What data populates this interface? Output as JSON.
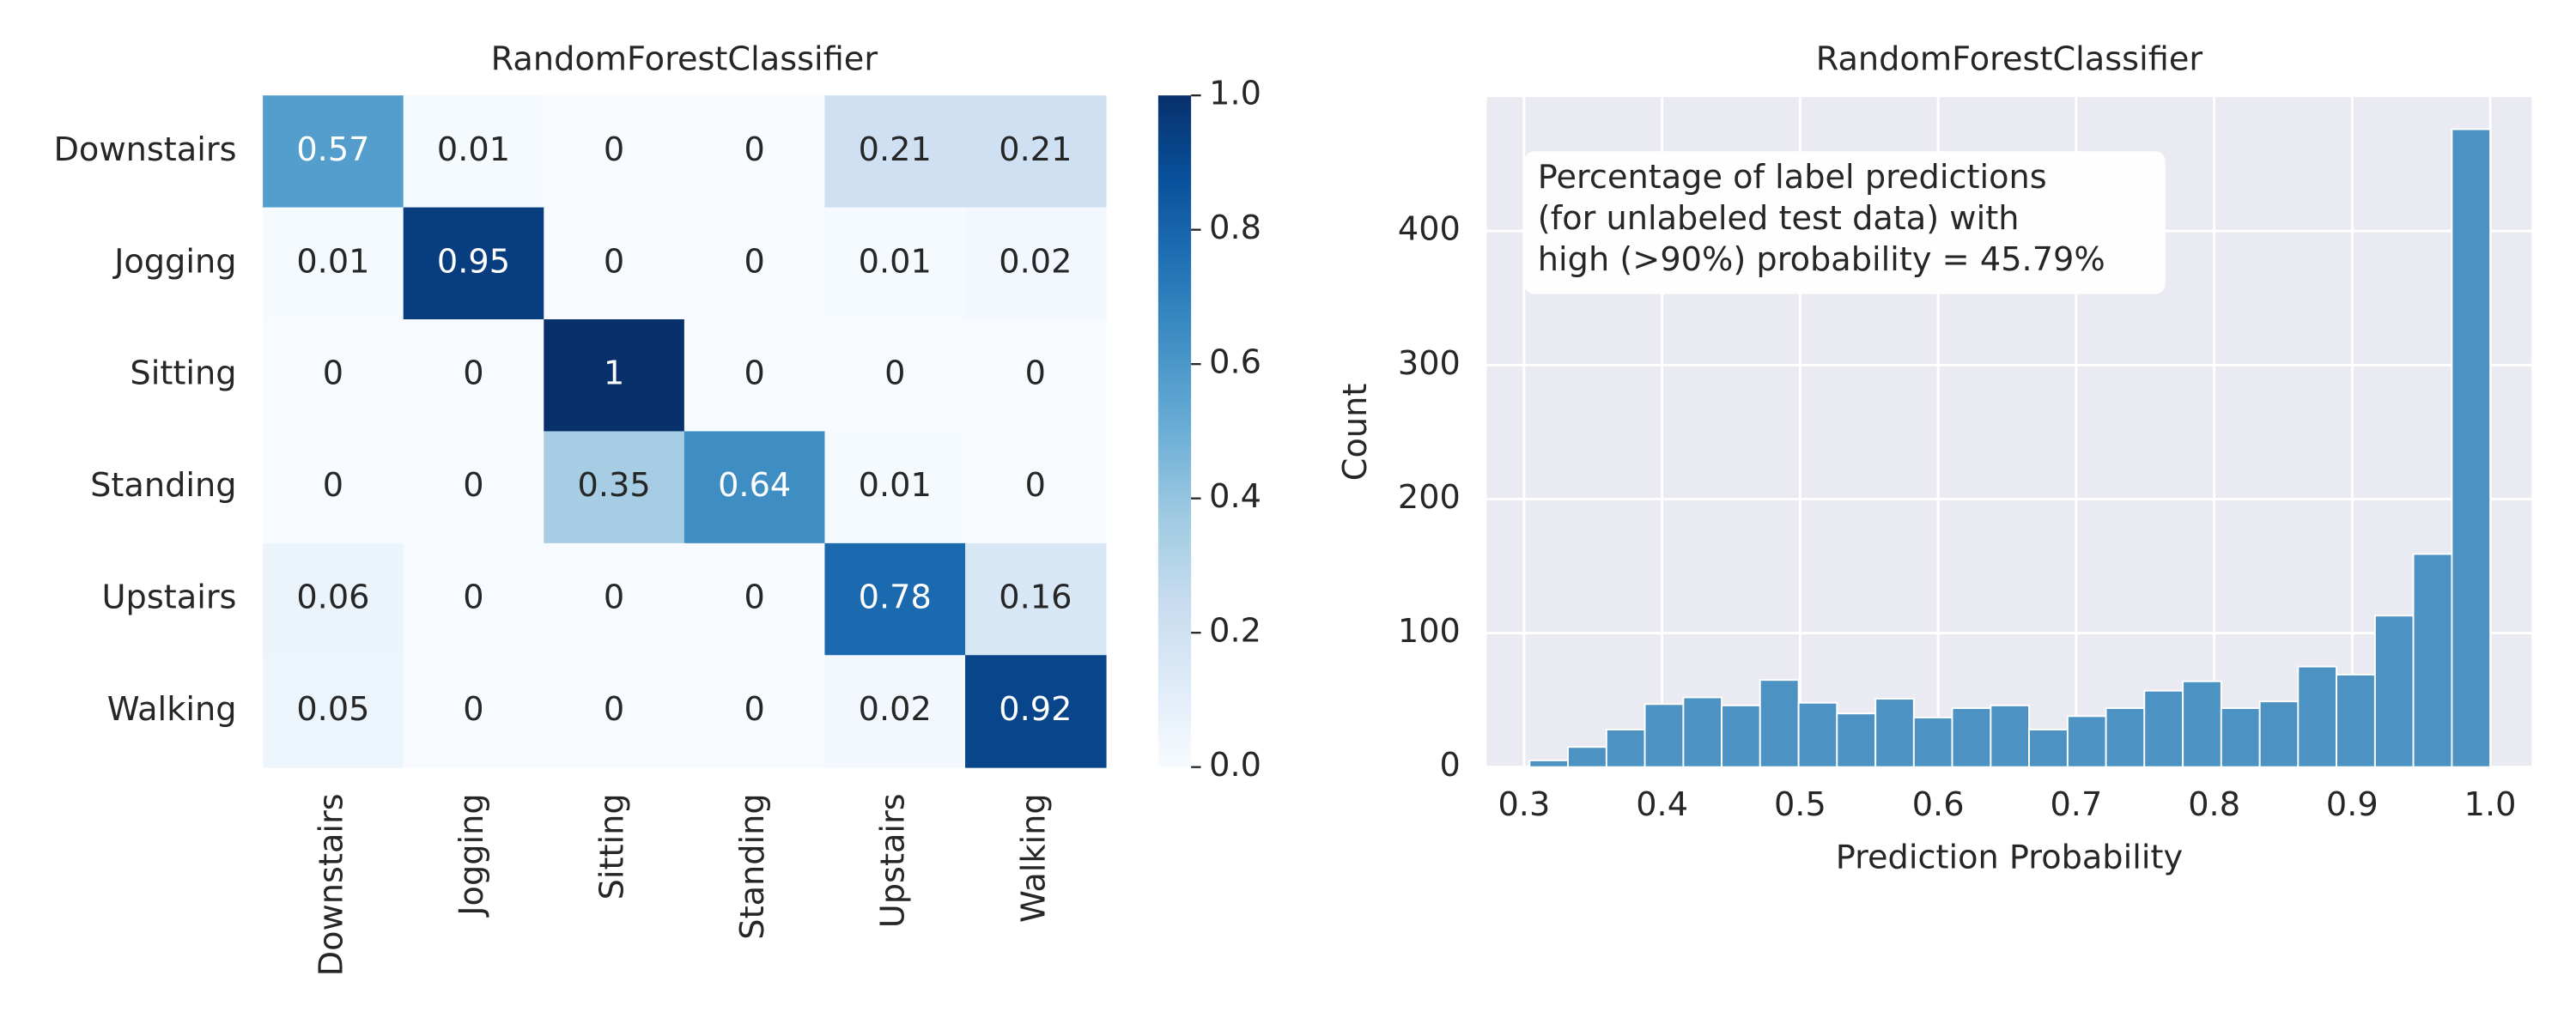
{
  "chart_data": [
    {
      "type": "heatmap",
      "title": "RandomForestClassifier",
      "y_categories": [
        "Downstairs",
        "Jogging",
        "Sitting",
        "Standing",
        "Upstairs",
        "Walking"
      ],
      "x_categories": [
        "Downstairs",
        "Jogging",
        "Sitting",
        "Standing",
        "Upstairs",
        "Walking"
      ],
      "values": [
        [
          0.57,
          0.01,
          0,
          0,
          0.21,
          0.21
        ],
        [
          0.01,
          0.95,
          0,
          0,
          0.01,
          0.02
        ],
        [
          0,
          0,
          1,
          0,
          0,
          0
        ],
        [
          0,
          0,
          0.35,
          0.64,
          0.01,
          0
        ],
        [
          0.06,
          0,
          0,
          0,
          0.78,
          0.16
        ],
        [
          0.05,
          0,
          0,
          0,
          0.02,
          0.92
        ]
      ],
      "colormap": "Blues",
      "clim": [
        0,
        1
      ],
      "cticks": [
        {
          "value": 0,
          "label": "0.0"
        },
        0.2,
        0.4,
        0.6,
        0.8,
        {
          "value": 1,
          "label": "1.0"
        }
      ]
    },
    {
      "type": "histogram",
      "title": "RandomForestClassifier",
      "xlabel": "Prediction Probability",
      "ylabel": "Count",
      "annotation": [
        "Percentage of label predictions",
        "(for unlabeled test data) with",
        "high (>90%) probability = 45.79%"
      ],
      "bins": [
        0.304,
        0.3318,
        0.3597,
        0.3875,
        0.4154,
        0.4432,
        0.471,
        0.4989,
        0.5267,
        0.5546,
        0.5824,
        0.6102,
        0.6381,
        0.6659,
        0.6938,
        0.7216,
        0.7494,
        0.7773,
        0.8051,
        0.833,
        0.8608,
        0.8886,
        0.9165,
        0.9443,
        0.9722,
        1.0
      ],
      "counts": [
        5,
        15,
        28,
        47,
        52,
        46,
        65,
        48,
        40,
        51,
        37,
        44,
        46,
        28,
        38,
        44,
        57,
        64,
        44,
        49,
        75,
        69,
        113,
        159,
        476
      ],
      "color": "#4c92c3",
      "xlim": [
        0.273,
        1.03
      ],
      "ylim": [
        0,
        500
      ],
      "xticks": [
        0.3,
        0.4,
        0.5,
        0.6,
        0.7,
        0.8,
        0.9,
        {
          "value": 1,
          "label": "1.0"
        }
      ],
      "yticks": [
        0,
        100,
        200,
        300,
        400
      ],
      "grid": true,
      "background": "#eaeaf2"
    }
  ]
}
